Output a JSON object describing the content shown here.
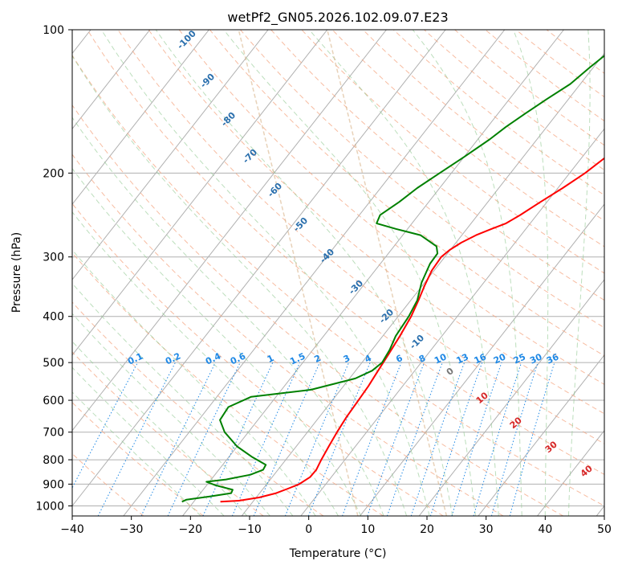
{
  "chart_data": {
    "type": "line",
    "title": "wetPf2_GN05.2026.102.09.07.E23",
    "xlabel": "Temperature (°C)",
    "ylabel": "Pressure (hPa)",
    "xlim": [
      -40,
      50
    ],
    "ylim": [
      1050,
      100
    ],
    "x_ticks": [
      "−40",
      "−30",
      "−20",
      "−10",
      "0",
      "10",
      "20",
      "30",
      "40",
      "50"
    ],
    "x_tick_values": [
      -40,
      -30,
      -20,
      -10,
      0,
      10,
      20,
      30,
      40,
      50
    ],
    "y_ticks": [
      "100",
      "200",
      "300",
      "400",
      "500",
      "600",
      "700",
      "800",
      "900",
      "1000"
    ],
    "y_tick_values": [
      100,
      200,
      300,
      400,
      500,
      600,
      700,
      800,
      900,
      1000
    ],
    "grid": true,
    "series": [
      {
        "name": "temperature",
        "color": "#ff0000",
        "points": [
          [
            980,
            -15.5
          ],
          [
            975,
            -12.5
          ],
          [
            960,
            -9.5
          ],
          [
            940,
            -7.2
          ],
          [
            920,
            -5.8
          ],
          [
            900,
            -4.5
          ],
          [
            870,
            -3.6
          ],
          [
            840,
            -3.5
          ],
          [
            800,
            -4.0
          ],
          [
            750,
            -4.5
          ],
          [
            700,
            -5.0
          ],
          [
            650,
            -5.4
          ],
          [
            600,
            -5.6
          ],
          [
            560,
            -5.8
          ],
          [
            520,
            -6.2
          ],
          [
            480,
            -6.6
          ],
          [
            440,
            -7.1
          ],
          [
            400,
            -7.8
          ],
          [
            370,
            -8.7
          ],
          [
            345,
            -9.6
          ],
          [
            320,
            -10.4
          ],
          [
            300,
            -10.6
          ],
          [
            290,
            -10.1
          ],
          [
            280,
            -9.1
          ],
          [
            270,
            -7.6
          ],
          [
            262,
            -5.8
          ],
          [
            255,
            -4.1
          ],
          [
            245,
            -2.8
          ],
          [
            230,
            -1.1
          ],
          [
            215,
            0.8
          ],
          [
            200,
            2.6
          ],
          [
            185,
            4.0
          ],
          [
            170,
            5.6
          ],
          [
            160,
            7.1
          ],
          [
            150,
            8.9
          ],
          [
            140,
            10.8
          ],
          [
            130,
            13.8
          ],
          [
            120,
            16.9
          ],
          [
            110,
            19.9
          ],
          [
            100,
            22.1
          ]
        ]
      },
      {
        "name": "dewpoint",
        "color": "#008000",
        "points": [
          [
            980,
            -22.0
          ],
          [
            970,
            -21.5
          ],
          [
            955,
            -18.0
          ],
          [
            940,
            -14.8
          ],
          [
            925,
            -15.0
          ],
          [
            905,
            -18.5
          ],
          [
            890,
            -20.5
          ],
          [
            880,
            -17.5
          ],
          [
            860,
            -14.0
          ],
          [
            840,
            -12.5
          ],
          [
            820,
            -12.7
          ],
          [
            790,
            -16.0
          ],
          [
            750,
            -20.0
          ],
          [
            700,
            -24.0
          ],
          [
            660,
            -26.4
          ],
          [
            620,
            -26.7
          ],
          [
            590,
            -24.2
          ],
          [
            570,
            -15.0
          ],
          [
            540,
            -9.0
          ],
          [
            520,
            -7.2
          ],
          [
            500,
            -6.6
          ],
          [
            470,
            -7.0
          ],
          [
            440,
            -7.8
          ],
          [
            400,
            -8.2
          ],
          [
            370,
            -8.9
          ],
          [
            340,
            -10.5
          ],
          [
            310,
            -11.6
          ],
          [
            295,
            -11.7
          ],
          [
            285,
            -12.8
          ],
          [
            270,
            -17.0
          ],
          [
            262,
            -22.0
          ],
          [
            255,
            -26.0
          ],
          [
            245,
            -26.5
          ],
          [
            230,
            -25.0
          ],
          [
            215,
            -23.8
          ],
          [
            200,
            -22.0
          ],
          [
            185,
            -20.0
          ],
          [
            170,
            -18.0
          ],
          [
            160,
            -16.9
          ],
          [
            150,
            -15.4
          ],
          [
            140,
            -13.7
          ],
          [
            130,
            -11.7
          ],
          [
            120,
            -10.6
          ],
          [
            110,
            -9.2
          ],
          [
            100,
            -7.2
          ]
        ]
      }
    ],
    "dry_adiabat_labels": [
      "-100",
      "-90",
      "-80",
      "-70",
      "-60",
      "-50",
      "-40",
      "-30",
      "-20",
      "-10"
    ],
    "mixing_ratio_labels": [
      "0.1",
      "0.2",
      "0.4",
      "0.6",
      "1",
      "1.5",
      "2",
      "3",
      "4",
      "6",
      "8",
      "10",
      "13",
      "16",
      "20",
      "25",
      "30",
      "36"
    ],
    "moist_adiabat_labels": [
      "0",
      "10",
      "20",
      "30",
      "40"
    ]
  }
}
